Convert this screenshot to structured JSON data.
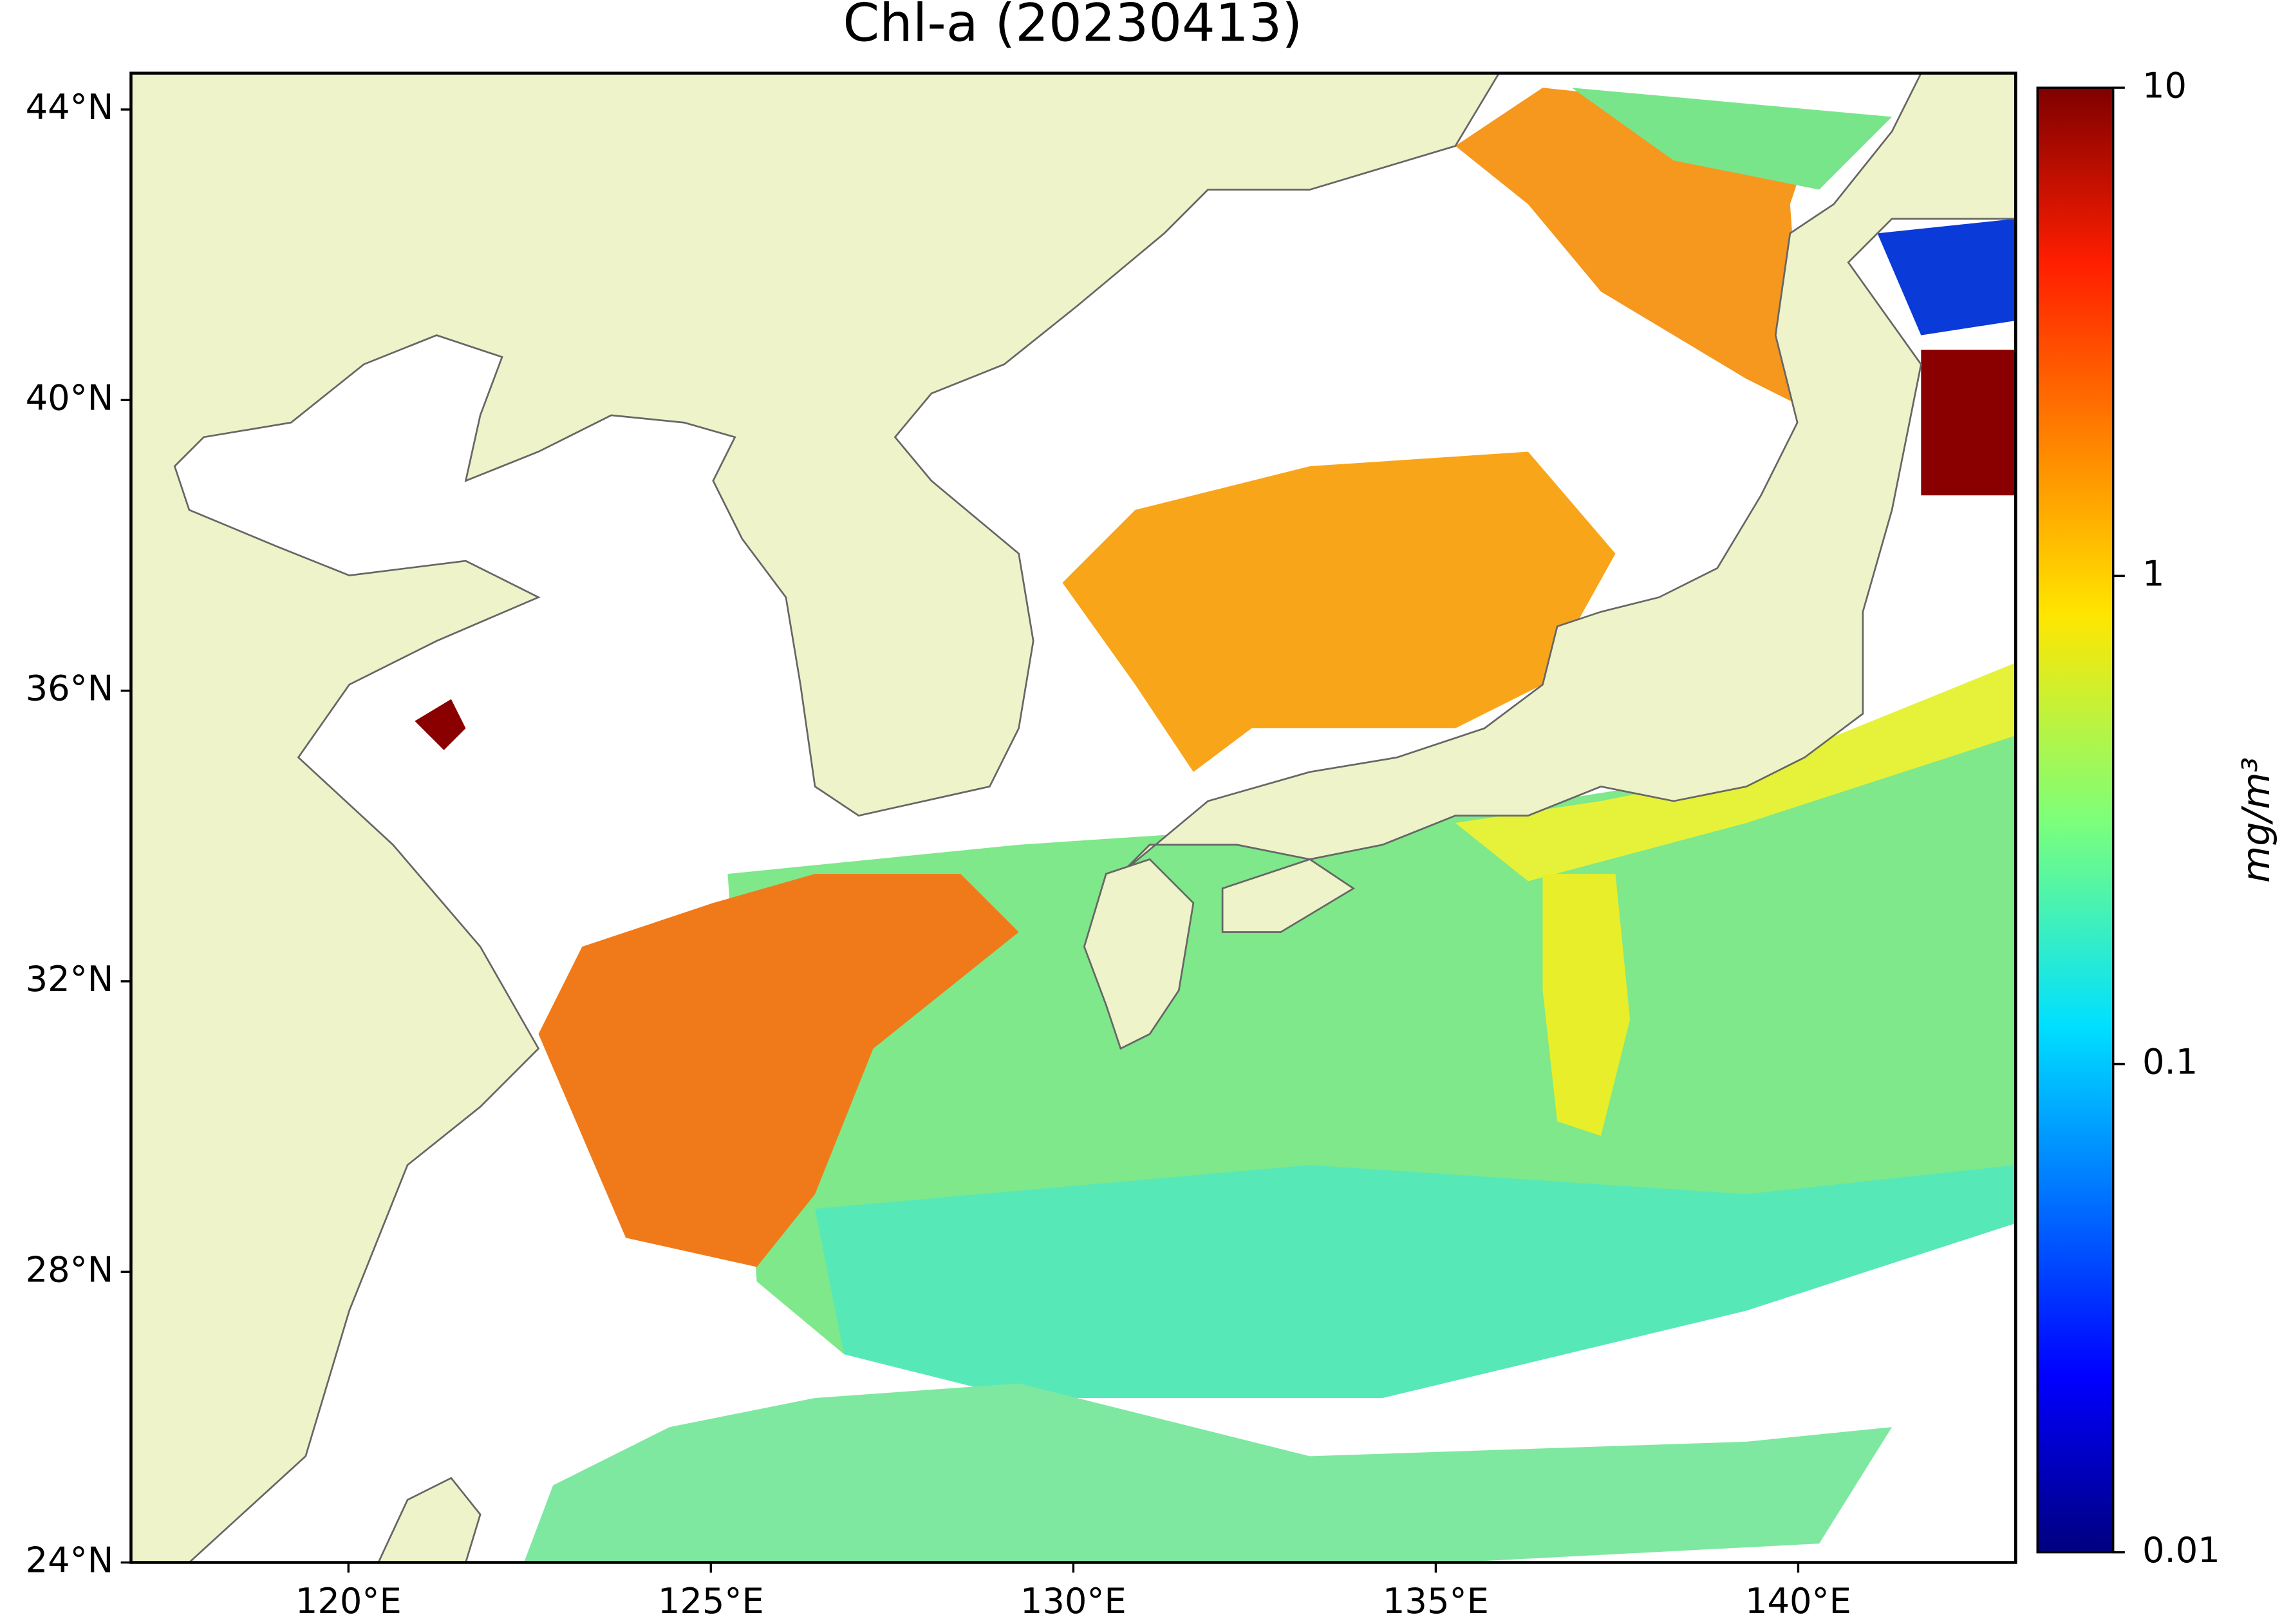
{
  "title": "Chl-a (20230413)",
  "map": {
    "xlim": [
      117,
      143
    ],
    "ylim": [
      24,
      44.5
    ],
    "xticks": [
      {
        "value": 120,
        "label": "120°E"
      },
      {
        "value": 125,
        "label": "125°E"
      },
      {
        "value": 130,
        "label": "130°E"
      },
      {
        "value": 135,
        "label": "135°E"
      },
      {
        "value": 140,
        "label": "140°E"
      }
    ],
    "yticks": [
      {
        "value": 24,
        "label": "24°N"
      },
      {
        "value": 28,
        "label": "28°N"
      },
      {
        "value": 32,
        "label": "32°N"
      },
      {
        "value": 36,
        "label": "36°N"
      },
      {
        "value": 40,
        "label": "40°N"
      },
      {
        "value": 44,
        "label": "44°N"
      }
    ]
  },
  "colorbar": {
    "label": "mg/m³",
    "scale": "log",
    "lim": [
      0.01,
      10
    ],
    "ticks": [
      0.01,
      0.1,
      1,
      10
    ],
    "colormap": "jet"
  }
}
